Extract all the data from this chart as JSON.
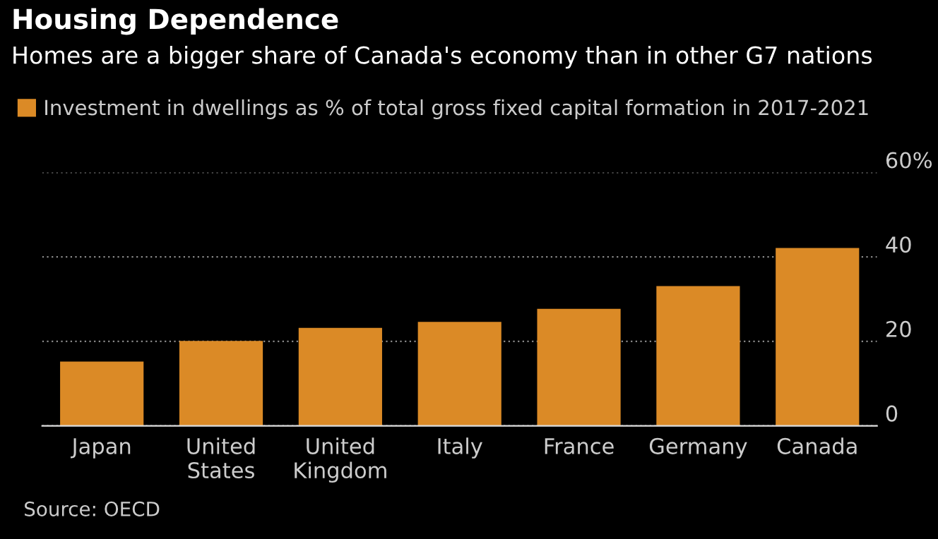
{
  "chart_data": {
    "type": "bar",
    "title": "Housing Dependence",
    "subtitle": "Homes are a bigger share of Canada's economy than in other G7 nations",
    "categories": [
      "Japan",
      "United\nStates",
      "United\nKingdom",
      "Italy",
      "France",
      "Germany",
      "Canada"
    ],
    "series": [
      {
        "name": "Investment in dwellings as % of total gross fixed capital formation in 2017-2021",
        "color": "#db8a26",
        "values": [
          15.2,
          20.1,
          23.2,
          24.6,
          27.7,
          33.1,
          42.1
        ]
      }
    ],
    "ylim": [
      0,
      60
    ],
    "yticks": [
      0,
      20,
      40,
      {
        "value": 60,
        "label": "60%"
      }
    ],
    "grid": "y",
    "legend": "top left",
    "annotations": [
      "Source: OECD"
    ]
  }
}
